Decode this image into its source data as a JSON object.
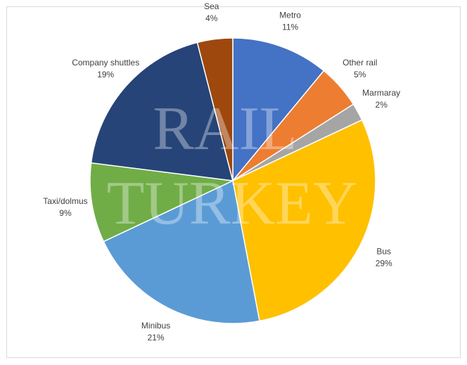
{
  "chart_data": {
    "type": "pie",
    "categories": [
      "Metro",
      "Other rail",
      "Marmaray",
      "Bus",
      "Minibus",
      "Taxi/dolmus",
      "Company shuttles",
      "Sea"
    ],
    "values": [
      11,
      5,
      2,
      29,
      21,
      9,
      19,
      4
    ],
    "value_labels": [
      "11%",
      "5%",
      "2%",
      "29%",
      "21%",
      "9%",
      "19%",
      "4%"
    ],
    "colors": [
      "#4472c4",
      "#ed7d31",
      "#a5a5a5",
      "#ffc000",
      "#5b9bd5",
      "#70ad47",
      "#264478",
      "#9e480e"
    ],
    "watermark": [
      "RAIL",
      "TURKEY"
    ]
  }
}
